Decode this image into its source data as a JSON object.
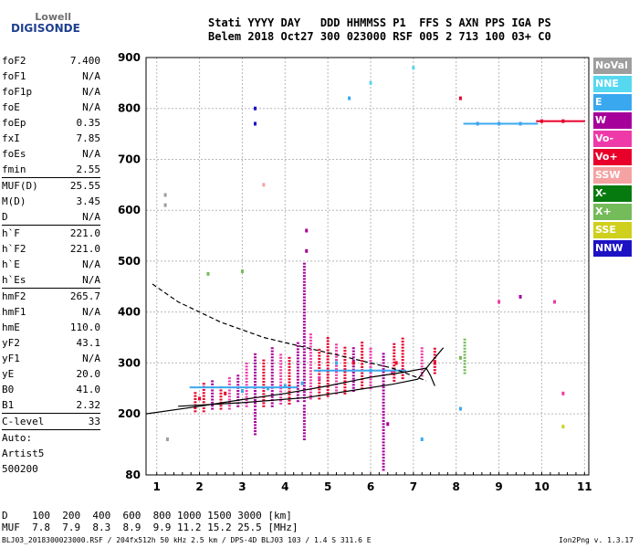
{
  "logo": {
    "top": "Lowell",
    "bottom": "DIGISONDE"
  },
  "header": {
    "row1": "Stati YYYY DAY   DDD HHMMSS P1  FFS S AXN PPS IGA PS",
    "row2": "Belem 2018 Oct27 300 023000 RSF 005 2 713 100 03+ C0"
  },
  "params": [
    {
      "label": "foF2",
      "value": "7.400"
    },
    {
      "label": "foF1",
      "value": "N/A"
    },
    {
      "label": "foF1p",
      "value": "N/A"
    },
    {
      "label": "foE",
      "value": "N/A"
    },
    {
      "label": "foEp",
      "value": "0.35"
    },
    {
      "label": "fxI",
      "value": "7.85"
    },
    {
      "label": "foEs",
      "value": "N/A"
    },
    {
      "label": "fmin",
      "value": "2.55"
    },
    {
      "sep": true
    },
    {
      "label": "MUF(D)",
      "value": "25.55"
    },
    {
      "label": "M(D)",
      "value": "3.45"
    },
    {
      "label": "D",
      "value": "N/A"
    },
    {
      "sep": true
    },
    {
      "label": "h`F",
      "value": "221.0"
    },
    {
      "label": "h`F2",
      "value": "221.0"
    },
    {
      "label": "h`E",
      "value": "N/A"
    },
    {
      "label": "h`Es",
      "value": "N/A"
    },
    {
      "sep": true
    },
    {
      "label": "hmF2",
      "value": "265.7"
    },
    {
      "label": "hmF1",
      "value": "N/A"
    },
    {
      "label": "hmE",
      "value": "110.0"
    },
    {
      "label": "yF2",
      "value": "43.1"
    },
    {
      "label": "yF1",
      "value": "N/A"
    },
    {
      "label": "yE",
      "value": "20.0"
    },
    {
      "label": "B0",
      "value": "41.0"
    },
    {
      "label": "B1",
      "value": "2.32"
    },
    {
      "sep": true
    },
    {
      "label": "C-level",
      "value": "33"
    },
    {
      "sep": true
    }
  ],
  "auto": [
    "Auto:",
    "Artist5",
    "500200"
  ],
  "legend": [
    {
      "label": "NoVal",
      "color": "#9e9e9e"
    },
    {
      "label": "NNE",
      "color": "#56d8f0"
    },
    {
      "label": "E",
      "color": "#3aa8ee"
    },
    {
      "label": "W",
      "color": "#a6009a"
    },
    {
      "label": "Vo-",
      "color": "#ee3aa8"
    },
    {
      "label": "Vo+",
      "color": "#e8002a"
    },
    {
      "label": "SSW",
      "color": "#f5a2a2"
    },
    {
      "label": "X-",
      "color": "#067a0e"
    },
    {
      "label": "X+",
      "color": "#74bb5a"
    },
    {
      "label": "SSE",
      "color": "#cfcf1e"
    },
    {
      "label": "NNW",
      "color": "#1c12c4"
    }
  ],
  "dtable": {
    "row1": "D    100  200  400  600  800 1000 1500 3000 [km]",
    "row2": "MUF  7.8  7.9  8.3  8.9  9.9 11.2 15.2 25.5 [MHz]"
  },
  "footer": "BLJ03_2018300023000.RSF / 204fx512h 50 kHz 2.5 km / DPS-4D BLJ03 103 / 1.4 S 311.6 E",
  "version": "Ion2Png v. 1.3.17",
  "chart_data": {
    "type": "scatter",
    "x_ticks": [
      1,
      2,
      3,
      4,
      5,
      6,
      7,
      8,
      9,
      10,
      11
    ],
    "y_ticks": [
      80,
      200,
      300,
      400,
      500,
      600,
      700,
      800,
      900
    ],
    "xlim": [
      0.75,
      11.1
    ],
    "ylim": [
      80,
      900
    ],
    "grid": true,
    "curves": [
      {
        "name": "profile",
        "style": "solid",
        "points": [
          [
            0.75,
            200
          ],
          [
            2,
            215
          ],
          [
            3,
            228
          ],
          [
            4,
            240
          ],
          [
            5,
            255
          ],
          [
            6,
            272
          ],
          [
            6.8,
            282
          ],
          [
            7.3,
            290
          ],
          [
            7.4,
            275
          ],
          [
            7.5,
            255
          ]
        ]
      },
      {
        "name": "trace",
        "style": "solid",
        "points": [
          [
            1.5,
            215
          ],
          [
            3,
            222
          ],
          [
            4.5,
            232
          ],
          [
            5.5,
            245
          ],
          [
            6.5,
            258
          ],
          [
            7.1,
            268
          ],
          [
            7.4,
            300
          ],
          [
            7.7,
            330
          ]
        ]
      },
      {
        "name": "extrapolation",
        "style": "dashed",
        "points": [
          [
            0.9,
            455
          ],
          [
            1.5,
            420
          ],
          [
            2.5,
            380
          ],
          [
            3.5,
            350
          ],
          [
            4.5,
            330
          ],
          [
            5.5,
            310
          ],
          [
            6.5,
            290
          ],
          [
            7.3,
            265
          ]
        ]
      }
    ],
    "points": [
      {
        "x": 1.2,
        "y": 630,
        "c": "#9e9e9e"
      },
      {
        "x": 1.2,
        "y": 610,
        "c": "#9e9e9e"
      },
      {
        "x": 1.25,
        "y": 150,
        "c": "#9e9e9e"
      },
      {
        "x": 2.2,
        "y": 475,
        "c": "#74bb5a"
      },
      {
        "x": 3.0,
        "y": 480,
        "c": "#74bb5a"
      },
      {
        "x": 3.3,
        "y": 800,
        "c": "#1c12c4"
      },
      {
        "x": 3.3,
        "y": 770,
        "c": "#1c12c4"
      },
      {
        "x": 3.5,
        "y": 650,
        "c": "#f5a2a2"
      },
      {
        "x": 4.5,
        "y": 560,
        "c": "#a6009a"
      },
      {
        "x": 4.5,
        "y": 520,
        "c": "#a6009a"
      },
      {
        "x": 5.5,
        "y": 820,
        "c": "#3aa8ee"
      },
      {
        "x": 6.0,
        "y": 850,
        "c": "#56d8f0"
      },
      {
        "x": 7.0,
        "y": 880,
        "c": "#56d8f0"
      },
      {
        "x": 8.1,
        "y": 820,
        "c": "#e8002a"
      },
      {
        "x": 8.5,
        "y": 770,
        "c": "#3aa8ee"
      },
      {
        "x": 9.0,
        "y": 770,
        "c": "#3aa8ee"
      },
      {
        "x": 9.5,
        "y": 770,
        "c": "#3aa8ee"
      },
      {
        "x": 10.0,
        "y": 775,
        "c": "#e8002a"
      },
      {
        "x": 10.5,
        "y": 775,
        "c": "#e8002a"
      },
      {
        "x": 10.3,
        "y": 420,
        "c": "#ee3aa8"
      },
      {
        "x": 10.5,
        "y": 240,
        "c": "#ee3aa8"
      },
      {
        "x": 9.5,
        "y": 430,
        "c": "#a6009a"
      },
      {
        "x": 9.0,
        "y": 420,
        "c": "#ee3aa8"
      },
      {
        "x": 8.1,
        "y": 310,
        "c": "#74bb5a"
      },
      {
        "x": 7.5,
        "y": 300,
        "c": "#e8002a"
      },
      {
        "x": 6.6,
        "y": 300,
        "c": "#e8002a"
      },
      {
        "x": 6.5,
        "y": 280,
        "c": "#ee3aa8"
      },
      {
        "x": 6.0,
        "y": 285,
        "c": "#3aa8ee"
      },
      {
        "x": 5.6,
        "y": 300,
        "c": "#e8002a"
      },
      {
        "x": 5.2,
        "y": 300,
        "c": "#3aa8ee"
      },
      {
        "x": 4.8,
        "y": 270,
        "c": "#ee3aa8"
      },
      {
        "x": 4.4,
        "y": 260,
        "c": "#3aa8ee"
      },
      {
        "x": 4.0,
        "y": 255,
        "c": "#3aa8ee"
      },
      {
        "x": 3.6,
        "y": 250,
        "c": "#3aa8ee"
      },
      {
        "x": 3.0,
        "y": 245,
        "c": "#3aa8ee"
      },
      {
        "x": 2.6,
        "y": 240,
        "c": "#e8002a"
      },
      {
        "x": 2.0,
        "y": 230,
        "c": "#e8002a"
      },
      {
        "x": 6.4,
        "y": 180,
        "c": "#a6009a"
      },
      {
        "x": 7.2,
        "y": 150,
        "c": "#3aa8ee"
      },
      {
        "x": 8.1,
        "y": 210,
        "c": "#3aa8ee"
      },
      {
        "x": 10.5,
        "y": 175,
        "c": "#cfcf1e"
      }
    ],
    "columns": [
      {
        "x": 1.9,
        "y0": 205,
        "y1": 245,
        "c": "#e8002a"
      },
      {
        "x": 2.1,
        "y0": 205,
        "y1": 260,
        "c": "#e8002a"
      },
      {
        "x": 2.3,
        "y0": 210,
        "y1": 265,
        "c": "#a6009a"
      },
      {
        "x": 2.5,
        "y0": 210,
        "y1": 255,
        "c": "#e8002a"
      },
      {
        "x": 2.7,
        "y0": 210,
        "y1": 275,
        "c": "#ee3aa8"
      },
      {
        "x": 2.9,
        "y0": 215,
        "y1": 280,
        "c": "#a6009a"
      },
      {
        "x": 3.1,
        "y0": 215,
        "y1": 300,
        "c": "#ee3aa8"
      },
      {
        "x": 3.3,
        "y0": 215,
        "y1": 320,
        "c": "#a6009a"
      },
      {
        "x": 3.5,
        "y0": 215,
        "y1": 310,
        "c": "#e8002a"
      },
      {
        "x": 3.7,
        "y0": 215,
        "y1": 330,
        "c": "#a6009a"
      },
      {
        "x": 3.9,
        "y0": 220,
        "y1": 320,
        "c": "#ee3aa8"
      },
      {
        "x": 4.1,
        "y0": 220,
        "y1": 310,
        "c": "#e8002a"
      },
      {
        "x": 4.3,
        "y0": 225,
        "y1": 340,
        "c": "#a6009a"
      },
      {
        "x": 4.45,
        "y0": 225,
        "y1": 500,
        "c": "#a6009a"
      },
      {
        "x": 4.6,
        "y0": 230,
        "y1": 360,
        "c": "#ee3aa8"
      },
      {
        "x": 4.8,
        "y0": 230,
        "y1": 330,
        "c": "#e8002a"
      },
      {
        "x": 5.0,
        "y0": 235,
        "y1": 350,
        "c": "#e8002a"
      },
      {
        "x": 5.2,
        "y0": 240,
        "y1": 340,
        "c": "#ee3aa8"
      },
      {
        "x": 5.4,
        "y0": 240,
        "y1": 330,
        "c": "#e8002a"
      },
      {
        "x": 5.6,
        "y0": 245,
        "y1": 330,
        "c": "#a6009a"
      },
      {
        "x": 5.8,
        "y0": 250,
        "y1": 340,
        "c": "#e8002a"
      },
      {
        "x": 6.0,
        "y0": 250,
        "y1": 330,
        "c": "#ee3aa8"
      },
      {
        "x": 6.3,
        "y0": 90,
        "y1": 320,
        "c": "#a6009a"
      },
      {
        "x": 6.55,
        "y0": 265,
        "y1": 340,
        "c": "#e8002a"
      },
      {
        "x": 6.75,
        "y0": 270,
        "y1": 350,
        "c": "#e8002a"
      },
      {
        "x": 7.2,
        "y0": 275,
        "y1": 330,
        "c": "#ee3aa8"
      },
      {
        "x": 7.5,
        "y0": 280,
        "y1": 330,
        "c": "#e8002a"
      },
      {
        "x": 8.2,
        "y0": 280,
        "y1": 350,
        "c": "#74bb5a"
      },
      {
        "x": 4.45,
        "y0": 150,
        "y1": 220,
        "c": "#a6009a"
      },
      {
        "x": 3.3,
        "y0": 160,
        "y1": 210,
        "c": "#a6009a"
      }
    ],
    "hlines": [
      {
        "x0": 1.8,
        "x1": 4.3,
        "y": 252,
        "c": "#3aa8ee"
      },
      {
        "x0": 4.7,
        "x1": 6.8,
        "y": 285,
        "c": "#3aa8ee"
      },
      {
        "x0": 8.2,
        "x1": 9.9,
        "y": 770,
        "c": "#3aa8ee"
      },
      {
        "x0": 9.9,
        "x1": 11.0,
        "y": 775,
        "c": "#e8002a"
      }
    ]
  }
}
